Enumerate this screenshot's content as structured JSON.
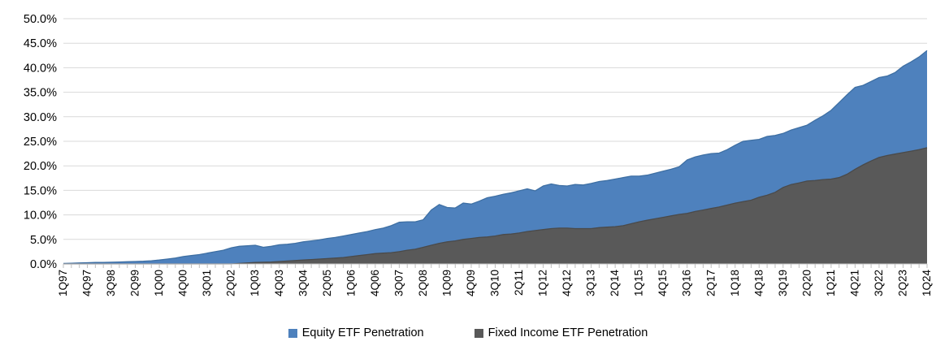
{
  "chart_data": {
    "type": "area",
    "stacked": false,
    "title": "",
    "xlabel": "",
    "ylabel": "",
    "ylim": [
      0,
      50
    ],
    "grid": "horizontal",
    "legend_position": "bottom-center",
    "n_points": 109,
    "x_label_step": 3,
    "y_tick_labels": [
      "0.0%",
      "5.0%",
      "10.0%",
      "15.0%",
      "20.0%",
      "25.0%",
      "30.0%",
      "35.0%",
      "40.0%",
      "45.0%",
      "50.0%"
    ],
    "y_ticks": [
      0,
      5,
      10,
      15,
      20,
      25,
      30,
      35,
      40,
      45,
      50
    ],
    "x_tick_labels": [
      "1Q97",
      "4Q97",
      "3Q98",
      "2Q99",
      "1Q00",
      "4Q00",
      "3Q01",
      "2Q02",
      "1Q03",
      "4Q03",
      "3Q04",
      "2Q05",
      "1Q06",
      "4Q06",
      "3Q07",
      "2Q08",
      "1Q09",
      "4Q09",
      "3Q10",
      "2Q11",
      "1Q12",
      "4Q12",
      "3Q13",
      "2Q14",
      "1Q15",
      "4Q15",
      "3Q16",
      "2Q17",
      "1Q18",
      "4Q18",
      "3Q19",
      "2Q20",
      "1Q21",
      "4Q21",
      "3Q22",
      "2Q23",
      "1Q24"
    ],
    "colors": {
      "gridline": "#d9d9d9",
      "axis_line": "#bfbfbf",
      "tick_mark": "#bfbfbf",
      "label_text": "#000000"
    },
    "series": [
      {
        "name": "Equity ETF Penetration",
        "color": "#4e81bd",
        "edge_color": "#3e6fa3",
        "values": [
          0.1,
          0.15,
          0.2,
          0.25,
          0.3,
          0.3,
          0.35,
          0.4,
          0.45,
          0.5,
          0.55,
          0.65,
          0.8,
          1.0,
          1.2,
          1.5,
          1.7,
          1.9,
          2.2,
          2.5,
          2.8,
          3.3,
          3.6,
          3.7,
          3.8,
          3.4,
          3.6,
          3.9,
          4.0,
          4.2,
          4.5,
          4.7,
          4.9,
          5.2,
          5.4,
          5.7,
          6.0,
          6.3,
          6.6,
          7.0,
          7.3,
          7.8,
          8.5,
          8.6,
          8.6,
          9.0,
          11.0,
          12.1,
          11.5,
          11.4,
          12.4,
          12.2,
          12.8,
          13.5,
          13.8,
          14.2,
          14.5,
          14.9,
          15.3,
          14.9,
          15.9,
          16.3,
          16.0,
          15.9,
          16.2,
          16.1,
          16.4,
          16.8,
          17.0,
          17.3,
          17.6,
          17.9,
          17.9,
          18.1,
          18.5,
          18.9,
          19.3,
          19.8,
          21.2,
          21.8,
          22.2,
          22.5,
          22.6,
          23.3,
          24.2,
          25.0,
          25.2,
          25.4,
          26.0,
          26.2,
          26.6,
          27.3,
          27.8,
          28.3,
          29.3,
          30.2,
          31.3,
          32.9,
          34.5,
          36.0,
          36.4,
          37.2,
          38.0,
          38.3,
          39.0,
          40.3,
          41.2,
          42.2,
          43.5
        ]
      },
      {
        "name": "Fixed Income ETF Penetration",
        "color": "#595959",
        "edge_color": "#4a4a4a",
        "values": [
          0,
          0,
          0,
          0,
          0,
          0,
          0,
          0,
          0,
          0,
          0,
          0,
          0,
          0,
          0,
          0,
          0,
          0,
          0,
          0,
          0,
          0,
          0.1,
          0.2,
          0.3,
          0.35,
          0.4,
          0.5,
          0.6,
          0.7,
          0.8,
          0.9,
          1.0,
          1.1,
          1.2,
          1.3,
          1.5,
          1.7,
          1.9,
          2.1,
          2.2,
          2.3,
          2.5,
          2.8,
          3.0,
          3.4,
          3.8,
          4.2,
          4.5,
          4.7,
          5.0,
          5.2,
          5.4,
          5.5,
          5.7,
          6.0,
          6.1,
          6.3,
          6.6,
          6.8,
          7.0,
          7.2,
          7.3,
          7.3,
          7.2,
          7.2,
          7.2,
          7.4,
          7.5,
          7.6,
          7.8,
          8.2,
          8.6,
          8.9,
          9.2,
          9.5,
          9.8,
          10.1,
          10.3,
          10.7,
          11.0,
          11.3,
          11.6,
          12.0,
          12.4,
          12.7,
          13.0,
          13.6,
          14.0,
          14.6,
          15.6,
          16.2,
          16.5,
          16.9,
          17.0,
          17.2,
          17.3,
          17.6,
          18.3,
          19.3,
          20.2,
          21.0,
          21.7,
          22.1,
          22.4,
          22.7,
          23.0,
          23.3,
          23.7
        ]
      }
    ]
  }
}
